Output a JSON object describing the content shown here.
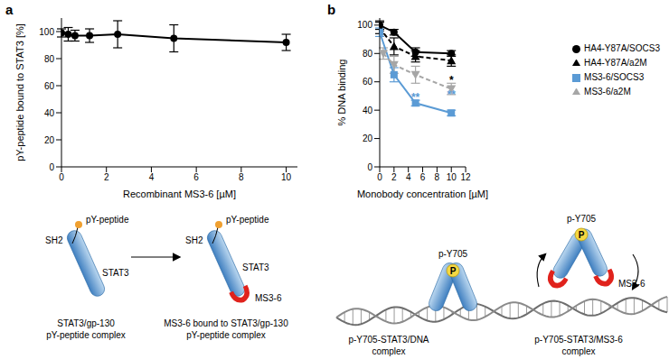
{
  "chart_data": [
    {
      "type": "line",
      "title": "a",
      "x_label": "Recombinant MS3-6 [µM]",
      "y_label": "pY-peptide bound to STAT3 [%]",
      "x": [
        0,
        0.3,
        0.6,
        1.25,
        2.5,
        5,
        10
      ],
      "values": [
        99,
        98,
        97,
        97,
        98,
        95,
        92
      ],
      "error": [
        3,
        5,
        4,
        5,
        10,
        10,
        6
      ],
      "color": "#000000",
      "marker": "circle",
      "line_style": "solid",
      "xlim": [
        0,
        10.5
      ],
      "xticks": [
        0,
        2,
        4,
        6,
        8,
        10
      ],
      "ylim": [
        0,
        110
      ],
      "yticks": [
        0,
        20,
        40,
        60,
        80,
        100
      ]
    },
    {
      "type": "line",
      "title": "b",
      "x_label": "Monobody concentration [µM]",
      "y_label": "% DNA binding",
      "xlim": [
        0,
        12
      ],
      "xticks": [
        0,
        2,
        4,
        6,
        8,
        10,
        12
      ],
      "ylim": [
        0,
        105
      ],
      "yticks": [
        0,
        20,
        40,
        60,
        80,
        100
      ],
      "legend": "right",
      "series": [
        {
          "name": "HA4-Y87A/SOCS3",
          "color": "#000000",
          "marker": "circle",
          "line_style": "solid",
          "x": [
            0,
            2,
            5,
            10
          ],
          "values": [
            100,
            95,
            81,
            80
          ],
          "error": [
            3,
            2,
            3,
            2
          ]
        },
        {
          "name": "HA4-Y87A/a2M",
          "color": "#000000",
          "marker": "triangle",
          "line_style": "dashed",
          "x": [
            0,
            2,
            5,
            10
          ],
          "values": [
            98,
            85,
            78,
            75
          ],
          "error": [
            4,
            6,
            4,
            4
          ]
        },
        {
          "name": "MS3-6/SOCS3",
          "color": "#5b9bd5",
          "marker": "square",
          "line_style": "solid",
          "x": [
            0,
            2,
            5,
            10
          ],
          "values": [
            95,
            65,
            45,
            38
          ],
          "error": [
            3,
            5,
            2,
            2
          ]
        },
        {
          "name": "MS3-6/a2M",
          "color": "#a6a6a6",
          "marker": "triangle_down",
          "line_style": "dashed",
          "x": [
            0.5,
            2,
            5,
            10
          ],
          "values": [
            80,
            72,
            65,
            55
          ],
          "error": [
            4,
            6,
            6,
            4
          ]
        }
      ],
      "annotations": [
        {
          "text": "*",
          "x": 10,
          "y": 61,
          "color": "#000000"
        },
        {
          "text": "**",
          "x": 10,
          "y": 51,
          "color": "#5b9bd5"
        },
        {
          "text": "**",
          "x": 5,
          "y": 49,
          "color": "#5b9bd5"
        }
      ]
    }
  ],
  "diagrams": {
    "a": {
      "sh2": "SH2",
      "peptide": "pY-peptide",
      "stat3": "STAT3",
      "monobody": "MS3-6",
      "captions": [
        [
          "STAT3/gp-130",
          "pY-peptide complex"
        ],
        [
          "MS3-6 bound to STAT3/gp-130",
          "pY-peptide complex"
        ]
      ]
    },
    "b": {
      "phospho": "p-Y705",
      "p": "P",
      "monobody": "MS3-6",
      "captions": [
        [
          "p-Y705-STAT3/DNA",
          "complex"
        ],
        [
          "p-Y705-STAT3/MS3-6",
          "complex"
        ]
      ]
    }
  }
}
